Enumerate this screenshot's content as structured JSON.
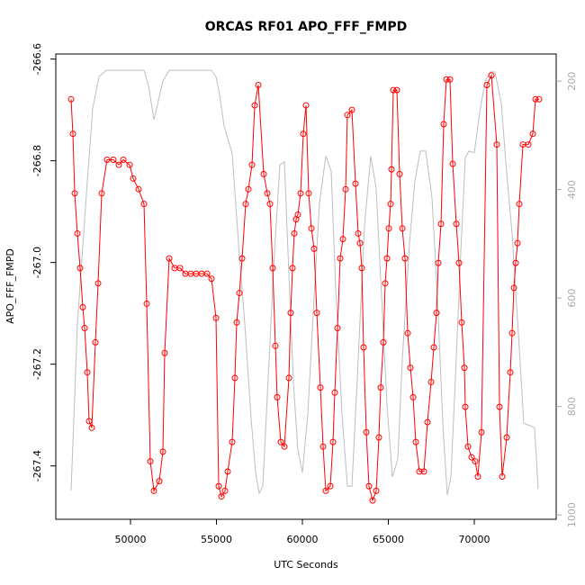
{
  "chart_data": {
    "type": "line",
    "title": "ORCAS RF01 APO_FFF_FMPD",
    "xlabel": "UTC Seconds",
    "ylabel": "APO_FFF_FMPD",
    "xlim": [
      45654,
      74764
    ],
    "ylim": [
      -267.505,
      -266.59
    ],
    "y2lim": [
      1008,
      150
    ],
    "xticks": [
      50000,
      55000,
      60000,
      65000,
      70000
    ],
    "yticks": [
      -266.6,
      -266.8,
      {
        "value": -267,
        "label": "-267.0"
      },
      -267.2,
      -267.4
    ],
    "y2ticks": [
      200,
      400,
      600,
      800,
      1000
    ],
    "series": [
      {
        "color": "#ff0000",
        "markers": true,
        "x": [
          46545,
          46650,
          46754,
          46910,
          47068,
          47225,
          47330,
          47487,
          47592,
          47749,
          47958,
          48115,
          48325,
          48639,
          49005,
          49319,
          49581,
          49948,
          50157,
          50471,
          50785,
          50942,
          51152,
          51361,
          51675,
          51885,
          51990,
          52251,
          52565,
          52880,
          53194,
          53508,
          53822,
          54136,
          54450,
          54712,
          54974,
          55131,
          55288,
          55497,
          55654,
          55916,
          56073,
          56178,
          56335,
          56492,
          56702,
          56859,
          57068,
          57225,
          57435,
          57749,
          57958,
          58115,
          58272,
          58429,
          58534,
          58743,
          58953,
          59215,
          59319,
          59424,
          59529,
          59634,
          59738,
          59895,
          60052,
          60209,
          60366,
          60524,
          60681,
          60838,
          61047,
          61204,
          61361,
          61623,
          61780,
          61885,
          62042,
          62199,
          62356,
          62513,
          62618,
          62880,
          63089,
          63246,
          63351,
          63455,
          63560,
          63717,
          63874,
          64084,
          64293,
          64450,
          64555,
          64712,
          64817,
          64921,
          65026,
          65131,
          65183,
          65288,
          65497,
          65654,
          65812,
          65969,
          66126,
          66283,
          66440,
          66597,
          66806,
          67068,
          67277,
          67487,
          67644,
          67801,
          67906,
          68063,
          68220,
          68377,
          68586,
          68743,
          68953,
          69110,
          69267,
          69424,
          69476,
          69634,
          69843,
          70052,
          70209,
          70419,
          70733,
          70995,
          71309,
          71466,
          71623,
          71885,
          72094,
          72199,
          72304,
          72408,
          72513,
          72618,
          72827,
          73141,
          73403,
          73560,
          73770
        ],
        "values": [
          -266.679,
          -266.747,
          -266.864,
          -266.943,
          -267.011,
          -267.088,
          -267.129,
          -267.216,
          -267.312,
          -267.325,
          -267.157,
          -267.041,
          -266.864,
          -266.798,
          -266.798,
          -266.808,
          -266.798,
          -266.808,
          -266.835,
          -266.856,
          -266.885,
          -267.081,
          -267.391,
          -267.449,
          -267.43,
          -267.372,
          -267.178,
          -266.992,
          -267.011,
          -267.011,
          -267.022,
          -267.022,
          -267.022,
          -267.022,
          -267.022,
          -267.032,
          -267.109,
          -267.44,
          -267.46,
          -267.449,
          -267.411,
          -267.353,
          -267.227,
          -267.118,
          -267.06,
          -266.992,
          -266.885,
          -266.856,
          -266.808,
          -266.691,
          -266.651,
          -266.826,
          -266.864,
          -266.885,
          -267.011,
          -267.164,
          -267.265,
          -267.353,
          -267.362,
          -267.227,
          -267.099,
          -267.011,
          -266.943,
          -266.915,
          -266.906,
          -266.864,
          -266.747,
          -266.691,
          -266.864,
          -266.933,
          -266.973,
          -267.099,
          -267.246,
          -267.362,
          -267.449,
          -267.44,
          -267.353,
          -267.256,
          -267.129,
          -266.992,
          -266.954,
          -266.856,
          -266.71,
          -266.7,
          -266.845,
          -266.943,
          -266.962,
          -267.011,
          -267.167,
          -267.334,
          -267.44,
          -267.468,
          -267.449,
          -267.344,
          -267.246,
          -267.157,
          -267.041,
          -266.992,
          -266.933,
          -266.885,
          -266.817,
          -266.661,
          -266.661,
          -266.826,
          -266.933,
          -266.992,
          -267.139,
          -267.207,
          -267.265,
          -267.353,
          -267.411,
          -267.411,
          -267.314,
          -267.235,
          -267.167,
          -267.099,
          -267.001,
          -266.924,
          -266.728,
          -266.64,
          -266.64,
          -266.806,
          -266.924,
          -267.001,
          -267.118,
          -267.207,
          -267.284,
          -267.362,
          -267.383,
          -267.391,
          -267.421,
          -267.334,
          -266.651,
          -266.632,
          -266.768,
          -267.284,
          -267.421,
          -267.344,
          -267.216,
          -267.139,
          -267.05,
          -267.001,
          -266.962,
          -266.885,
          -266.768,
          -266.768,
          -266.747,
          -266.679,
          -266.679
        ]
      },
      {
        "color": "#bebebe",
        "axis": "y2",
        "x": [
          46545,
          46911,
          47382,
          47801,
          48168,
          48586,
          50785,
          51047,
          51361,
          51623,
          51885,
          52251,
          54712,
          54974,
          55183,
          55445,
          55916,
          56283,
          56649,
          57016,
          57277,
          57487,
          57696,
          58010,
          58377,
          58691,
          58953,
          59162,
          59476,
          59738,
          60000,
          60314,
          60681,
          60995,
          61361,
          61675,
          61937,
          62304,
          62618,
          62880,
          63194,
          63613,
          63979,
          64293,
          64607,
          64921,
          65236,
          65550,
          65812,
          66230,
          66545,
          66859,
          67173,
          67539,
          67853,
          68168,
          68429,
          68639,
          68901,
          69215,
          69476,
          69686,
          70000,
          70314,
          70628,
          70942,
          71204,
          71571,
          71833,
          72199,
          72565,
          72880,
          73298,
          73508,
          73717
        ],
        "values": [
          955,
          648,
          432,
          250,
          192,
          180,
          180,
          208,
          271,
          236,
          200,
          180,
          180,
          192,
          225,
          283,
          333,
          499,
          648,
          822,
          922,
          960,
          947,
          748,
          515,
          354,
          349,
          515,
          756,
          880,
          922,
          814,
          598,
          424,
          338,
          366,
          582,
          814,
          947,
          947,
          748,
          466,
          338,
          399,
          598,
          797,
          930,
          897,
          714,
          499,
          383,
          329,
          329,
          415,
          598,
          831,
          963,
          930,
          748,
          515,
          341,
          329,
          332,
          258,
          200,
          183,
          183,
          241,
          349,
          482,
          665,
          831,
          836,
          839,
          952
        ]
      }
    ]
  }
}
